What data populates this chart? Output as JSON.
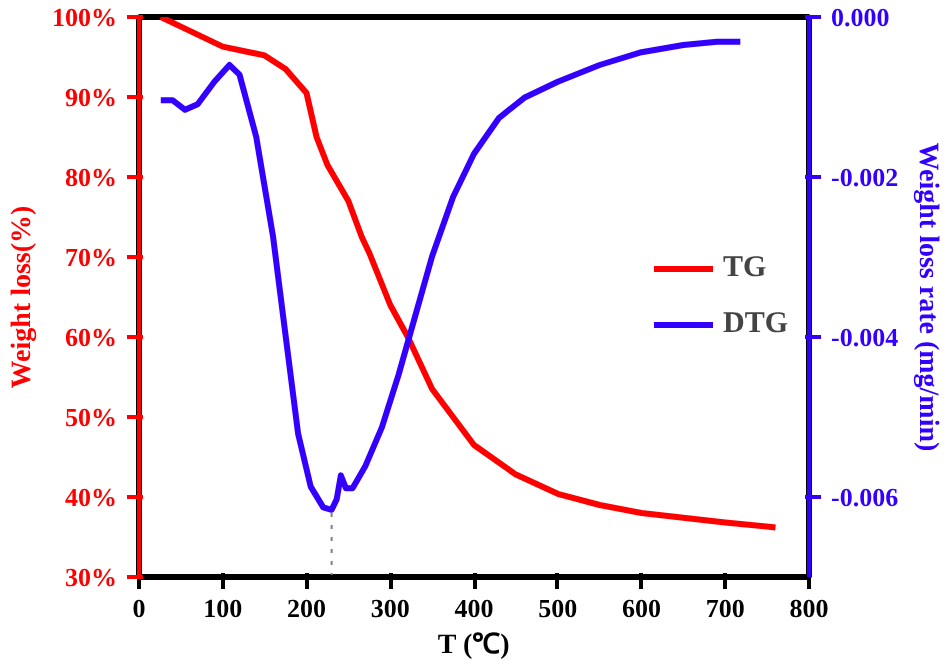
{
  "chart_data": {
    "type": "line",
    "xlabel": "T (℃)",
    "ylabel": "Weight loss(%)",
    "y2label": "Weight loss rate (mg/min)",
    "xlim": [
      0,
      800
    ],
    "xticks": [
      0,
      100,
      200,
      300,
      400,
      500,
      600,
      700,
      800
    ],
    "ylim": [
      30,
      100
    ],
    "yticks": [
      {
        "value": 30,
        "label": "30%"
      },
      {
        "value": 40,
        "label": "40%"
      },
      {
        "value": 50,
        "label": "50%"
      },
      {
        "value": 60,
        "label": "60%"
      },
      {
        "value": 70,
        "label": "70%"
      },
      {
        "value": 80,
        "label": "80%"
      },
      {
        "value": 90,
        "label": "90%"
      },
      {
        "value": 100,
        "label": "100%"
      }
    ],
    "y2lim": [
      -0.007,
      0
    ],
    "y2ticks": [
      {
        "value": -0.006,
        "label": "-0.006"
      },
      {
        "value": -0.004,
        "label": "-0.004"
      },
      {
        "value": -0.002,
        "label": "-0.002"
      },
      {
        "value": 0,
        "label": "0.000"
      }
    ],
    "legend": "right",
    "grid": false,
    "line_style": "solid",
    "ref_lines": [
      {
        "axis": "x",
        "value": 230,
        "color": "#808080",
        "line_style": "dotted"
      }
    ],
    "series": [
      {
        "name": "TG",
        "color": "#ff0000",
        "x": [
          26,
          50,
          100,
          150,
          175,
          200,
          212,
          225,
          250,
          266,
          275,
          300,
          321,
          350,
          400,
          450,
          500,
          550,
          600,
          650,
          700,
          760
        ],
        "values": [
          100,
          98.8,
          96.3,
          95.2,
          93.5,
          90.5,
          85,
          81.5,
          77,
          72.5,
          70.5,
          64,
          60,
          53.5,
          46.5,
          42.8,
          40.4,
          39,
          38,
          37.4,
          36.8,
          36.2
        ]
      },
      {
        "name": "DTG",
        "color": "#3300ff",
        "axis": "y2",
        "x": [
          26,
          40,
          55,
          70,
          90,
          108,
          120,
          140,
          160,
          175,
          190,
          205,
          220,
          230,
          236,
          241,
          247,
          255,
          270,
          290,
          310,
          330,
          350,
          375,
          400,
          430,
          460,
          500,
          550,
          600,
          650,
          690,
          718
        ],
        "values": [
          -0.00104,
          -0.00104,
          -0.00116,
          -0.00109,
          -0.00081,
          -0.0006,
          -0.00072,
          -0.0015,
          -0.00274,
          -0.00398,
          -0.00521,
          -0.00587,
          -0.00613,
          -0.00616,
          -0.00603,
          -0.00573,
          -0.00589,
          -0.00589,
          -0.00562,
          -0.00513,
          -0.00447,
          -0.00373,
          -0.00299,
          -0.00225,
          -0.00171,
          -0.00126,
          -0.00101,
          -0.00081,
          -0.0006,
          -0.00044,
          -0.00035,
          -0.00031,
          -0.00031
        ]
      }
    ]
  }
}
